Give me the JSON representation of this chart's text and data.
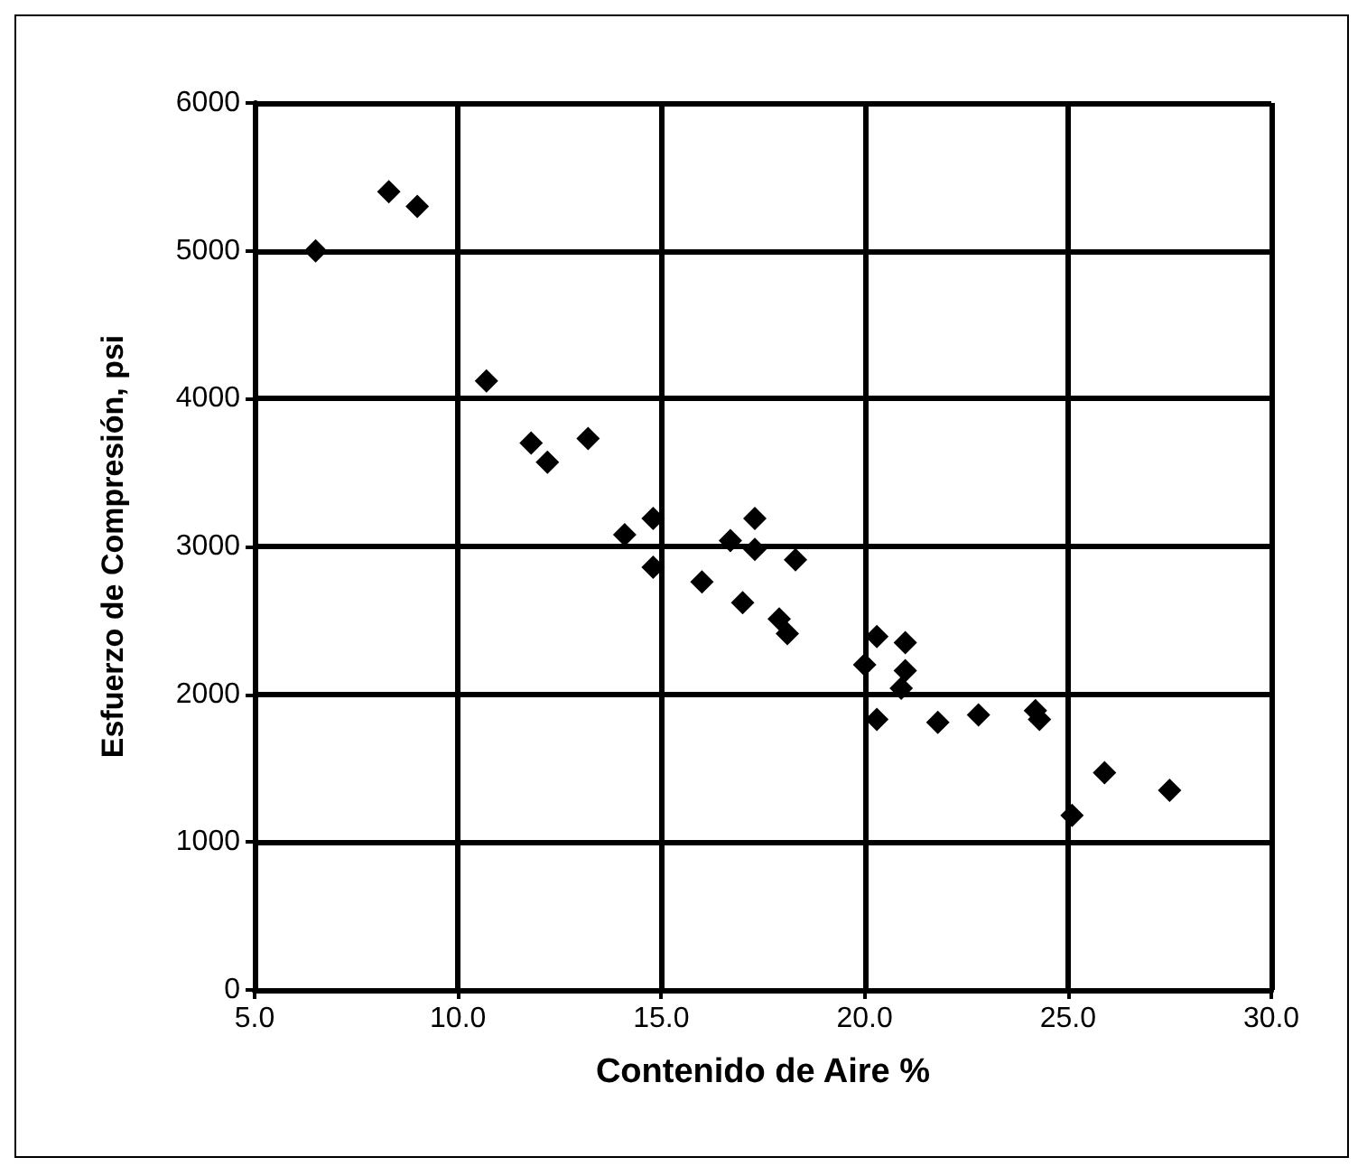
{
  "chart_data": {
    "type": "scatter",
    "xlabel": "Contenido de Aire %",
    "ylabel": "Esfuerzo de Compresión, psi",
    "x": [
      6.5,
      8.3,
      9.0,
      10.7,
      11.8,
      12.2,
      13.2,
      14.1,
      14.8,
      14.8,
      16.0,
      16.7,
      17.0,
      17.3,
      17.3,
      17.9,
      18.1,
      18.3,
      20.0,
      20.3,
      20.3,
      20.9,
      21.0,
      21.0,
      21.8,
      22.8,
      24.2,
      24.3,
      25.1,
      25.9,
      27.5
    ],
    "series": [
      {
        "color": "#000000",
        "values": [
          5000,
          5400,
          5300,
          4120,
          3700,
          3570,
          3730,
          3080,
          3190,
          2860,
          2760,
          3040,
          2620,
          3190,
          2980,
          2510,
          2410,
          2910,
          2200,
          1830,
          2390,
          2040,
          2160,
          2350,
          1810,
          1860,
          1890,
          1830,
          1180,
          1470,
          1350
        ]
      }
    ],
    "xlim": [
      5,
      30
    ],
    "xticks": [
      {
        "value": 5,
        "label": "5.0"
      },
      {
        "value": 10,
        "label": "10.0"
      },
      {
        "value": 15,
        "label": "15.0"
      },
      {
        "value": 20,
        "label": "20.0"
      },
      {
        "value": 25,
        "label": "25.0"
      },
      {
        "value": 30,
        "label": "30.0"
      }
    ],
    "ylim": [
      0,
      6000
    ],
    "yticks": [
      0,
      1000,
      2000,
      3000,
      4000,
      5000,
      6000
    ],
    "grid": true,
    "marker": "diamond"
  }
}
